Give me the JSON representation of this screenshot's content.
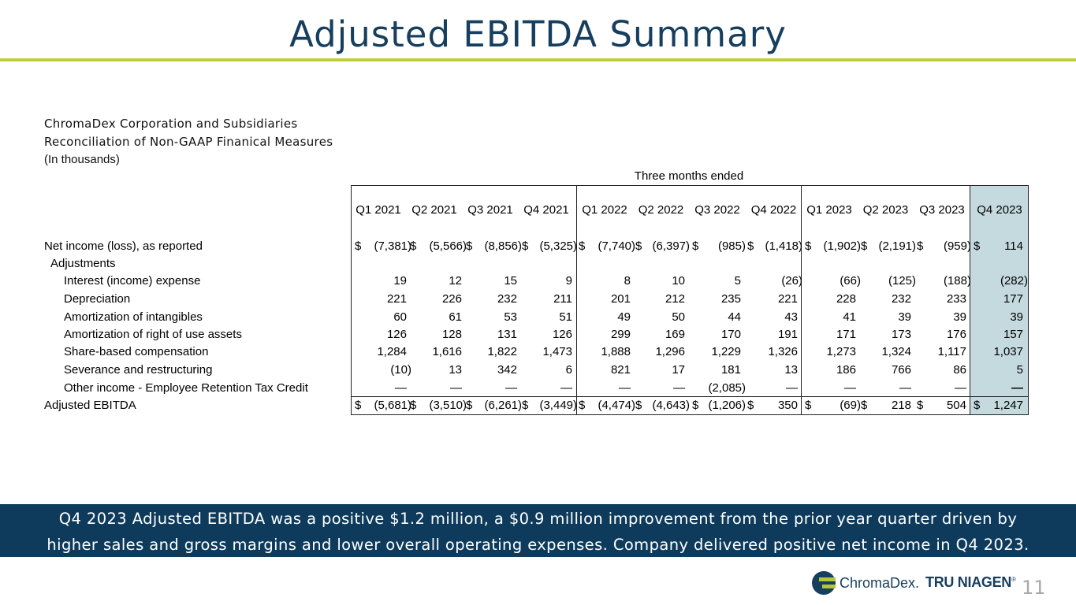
{
  "title": "Adjusted EBITDA Summary",
  "header": {
    "company": "ChromaDex Corporation and Subsidiaries",
    "subtitle": "Reconciliation of Non-GAAP Finanical Measures",
    "units": "(In thousands)",
    "period_label": "Three months ended"
  },
  "columns": [
    "Q1 2021",
    "Q2 2021",
    "Q3 2021",
    "Q4 2021",
    "Q1 2022",
    "Q2 2022",
    "Q3 2022",
    "Q4 2022",
    "Q1 2023",
    "Q2 2023",
    "Q3 2023",
    "Q4 2023"
  ],
  "rows": [
    {
      "label": "Net income (loss), as reported",
      "dollar": true,
      "values": [
        "(7,381)",
        "(5,566)",
        "(8,856)",
        "(5,325)",
        "(7,740)",
        "(6,397)",
        "(985)",
        "(1,418)",
        "(1,902)",
        "(2,191)",
        "(959)",
        "114"
      ]
    },
    {
      "label": "Adjustments",
      "dollar": false,
      "values": []
    },
    {
      "label": "Interest (income) expense",
      "dollar": false,
      "values": [
        "19",
        "12",
        "15",
        "9",
        "8",
        "10",
        "5",
        "(26)",
        "(66)",
        "(125)",
        "(188)",
        "(282)"
      ]
    },
    {
      "label": "Depreciation",
      "dollar": false,
      "values": [
        "221",
        "226",
        "232",
        "211",
        "201",
        "212",
        "235",
        "221",
        "228",
        "232",
        "233",
        "177"
      ]
    },
    {
      "label": "Amortization of intangibles",
      "dollar": false,
      "values": [
        "60",
        "61",
        "53",
        "51",
        "49",
        "50",
        "44",
        "43",
        "41",
        "39",
        "39",
        "39"
      ]
    },
    {
      "label": "Amortization of right of use assets",
      "dollar": false,
      "values": [
        "126",
        "128",
        "131",
        "126",
        "299",
        "169",
        "170",
        "191",
        "171",
        "173",
        "176",
        "157"
      ]
    },
    {
      "label": "Share-based compensation",
      "dollar": false,
      "values": [
        "1,284",
        "1,616",
        "1,822",
        "1,473",
        "1,888",
        "1,296",
        "1,229",
        "1,326",
        "1,273",
        "1,324",
        "1,117",
        "1,037"
      ]
    },
    {
      "label": "Severance and restructuring",
      "dollar": false,
      "values": [
        "(10)",
        "13",
        "342",
        "6",
        "821",
        "17",
        "181",
        "13",
        "186",
        "766",
        "86",
        "5"
      ]
    },
    {
      "label": "Other income - Employee Retention Tax Credit",
      "dollar": false,
      "values": [
        "—",
        "—",
        "—",
        "—",
        "—",
        "—",
        "(2,085)",
        "—",
        "—",
        "—",
        "—",
        "—"
      ]
    },
    {
      "label": "Adjusted EBITDA",
      "dollar": true,
      "values": [
        "(5,681)",
        "(3,510)",
        "(6,261)",
        "(3,449)",
        "(4,474)",
        "(4,643)",
        "(1,206)",
        "350",
        "(69)",
        "218",
        "504",
        "1,247"
      ]
    }
  ],
  "currency_symbol": "$",
  "banner": {
    "line1": "Q4 2023 Adjusted EBITDA was a positive $1.2 million, a $0.9 million improvement from the prior year quarter driven by",
    "line2": "higher sales and gross margins and lower overall operating expenses.  Company delivered positive net income in Q4 2023."
  },
  "logo": {
    "brand1": "ChromaDex.",
    "brand2": "TRU NIAGEN",
    "trademark": "®"
  },
  "page_number": "11"
}
